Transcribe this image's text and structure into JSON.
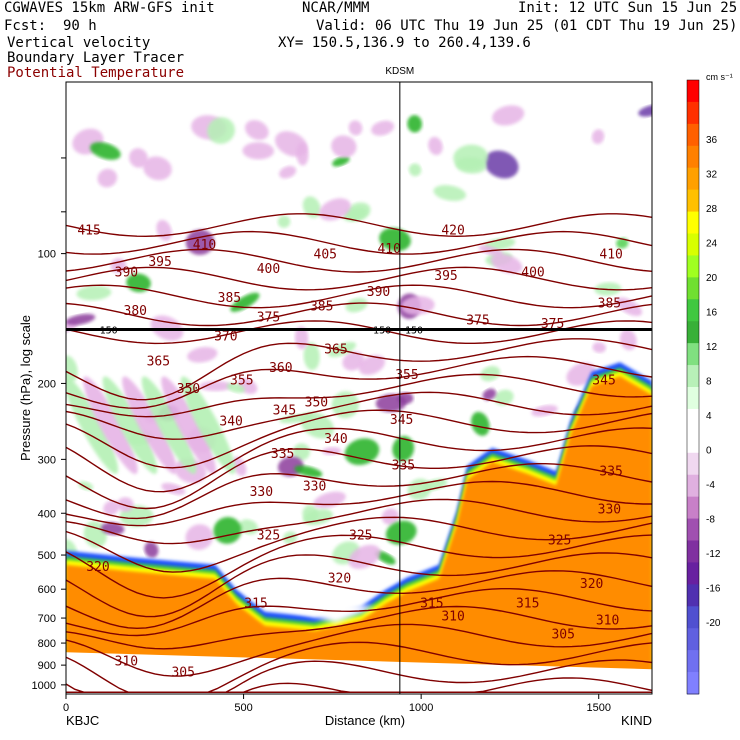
{
  "header": {
    "model": "CGWAVES 15km ARW-GFS init",
    "org": "NCAR/MMM",
    "init": "Init: 12 UTC Sun 15 Jun 25",
    "fcst_label": "Fcst:",
    "fcst_value": "90 h",
    "valid": "Valid: 06 UTC Thu 19 Jun 25 (01 CDT Thu 19 Jun 25)",
    "field1": "Vertical velocity",
    "field2": "Boundary Layer Tracer",
    "field3": "Potential Temperature",
    "xy": "XY= 150.5,136.9 to 260.4,139.6",
    "station_mid": "KDSM",
    "station_left": "KBJC",
    "station_right": "KIND"
  },
  "colors": {
    "theta": "#800000",
    "tracer_orange": "#ff8c00",
    "tracer_yellow": "#ffff00",
    "tracer_green": "#3cc83c",
    "tracer_blue": "#1e50ff",
    "updraft_light": "#b4f0b4",
    "updraft_dark": "#20b020",
    "downdraft_light": "#e6b4e6",
    "downdraft_dark": "#8c3c9c"
  },
  "chart_data": {
    "type": "heatmap",
    "title": "Vertical velocity",
    "xlabel": "Distance (km)",
    "ylabel": "Pressure (hPa), log scale",
    "xlim": [
      0,
      1650
    ],
    "ylim": [
      1050,
      40
    ],
    "y_scale": "log",
    "x_ticks": [
      0,
      500,
      1000,
      1500
    ],
    "y_ticks": [
      1000,
      900,
      800,
      700,
      600,
      500,
      400,
      300,
      200,
      100
    ],
    "marker": {
      "label": "KDSM",
      "x": 940
    },
    "tropopause_line": {
      "pressure": 150,
      "labels": [
        "150",
        "150",
        "150"
      ]
    },
    "colorbar": {
      "unit": "cm s⁻¹",
      "ticks": [
        "36",
        "32",
        "28",
        "24",
        "20",
        "16",
        "12",
        "8",
        "4",
        "0",
        "-4",
        "-8",
        "-12",
        "-16",
        "-20"
      ],
      "colors": [
        "#ff0000",
        "#ff3000",
        "#ff6000",
        "#ff8000",
        "#ffa000",
        "#ffc000",
        "#ffff00",
        "#d8ff00",
        "#a0ff20",
        "#70e030",
        "#40c840",
        "#38b038",
        "#80e080",
        "#b8f0b8",
        "#e0ffe0",
        "#ffffff",
        "#ffffff",
        "#f0d8f0",
        "#e0b0e0",
        "#c880c8",
        "#a050b0",
        "#8030a0",
        "#6820a0",
        "#5030b0",
        "#5050d0",
        "#6060e0",
        "#7070f0",
        "#8080ff"
      ]
    },
    "theta_labels": [
      {
        "v": "415",
        "x": 65,
        "p": 88
      },
      {
        "v": "390",
        "x": 170,
        "p": 110
      },
      {
        "v": "395",
        "x": 265,
        "p": 104
      },
      {
        "v": "410",
        "x": 390,
        "p": 95
      },
      {
        "v": "400",
        "x": 570,
        "p": 108
      },
      {
        "v": "405",
        "x": 730,
        "p": 100
      },
      {
        "v": "410",
        "x": 910,
        "p": 97
      },
      {
        "v": "420",
        "x": 1090,
        "p": 88
      },
      {
        "v": "395",
        "x": 1070,
        "p": 112
      },
      {
        "v": "400",
        "x": 1315,
        "p": 110
      },
      {
        "v": "410",
        "x": 1535,
        "p": 100
      },
      {
        "v": "380",
        "x": 195,
        "p": 135
      },
      {
        "v": "385",
        "x": 460,
        "p": 126
      },
      {
        "v": "385",
        "x": 720,
        "p": 132
      },
      {
        "v": "390",
        "x": 880,
        "p": 122
      },
      {
        "v": "385",
        "x": 1530,
        "p": 130
      },
      {
        "v": "370",
        "x": 450,
        "p": 155
      },
      {
        "v": "375",
        "x": 570,
        "p": 140
      },
      {
        "v": "365",
        "x": 760,
        "p": 166
      },
      {
        "v": "375",
        "x": 1160,
        "p": 142
      },
      {
        "v": "375",
        "x": 1370,
        "p": 145
      },
      {
        "v": "365",
        "x": 260,
        "p": 177
      },
      {
        "v": "360",
        "x": 605,
        "p": 183
      },
      {
        "v": "355",
        "x": 495,
        "p": 196
      },
      {
        "v": "355",
        "x": 960,
        "p": 190
      },
      {
        "v": "350",
        "x": 345,
        "p": 205
      },
      {
        "v": "345",
        "x": 615,
        "p": 230
      },
      {
        "v": "350",
        "x": 705,
        "p": 220
      },
      {
        "v": "340",
        "x": 465,
        "p": 244
      },
      {
        "v": "345",
        "x": 945,
        "p": 242
      },
      {
        "v": "345",
        "x": 1515,
        "p": 196
      },
      {
        "v": "340",
        "x": 760,
        "p": 268
      },
      {
        "v": "335",
        "x": 610,
        "p": 290
      },
      {
        "v": "335",
        "x": 950,
        "p": 308
      },
      {
        "v": "330",
        "x": 700,
        "p": 345
      },
      {
        "v": "330",
        "x": 550,
        "p": 355
      },
      {
        "v": "335",
        "x": 1535,
        "p": 318
      },
      {
        "v": "330",
        "x": 1530,
        "p": 390
      },
      {
        "v": "325",
        "x": 570,
        "p": 448
      },
      {
        "v": "325",
        "x": 830,
        "p": 448
      },
      {
        "v": "325",
        "x": 1390,
        "p": 460
      },
      {
        "v": "320",
        "x": 90,
        "p": 530
      },
      {
        "v": "320",
        "x": 770,
        "p": 563
      },
      {
        "v": "320",
        "x": 1480,
        "p": 580
      },
      {
        "v": "315",
        "x": 535,
        "p": 645
      },
      {
        "v": "315",
        "x": 1030,
        "p": 645
      },
      {
        "v": "315",
        "x": 1300,
        "p": 645
      },
      {
        "v": "310",
        "x": 1090,
        "p": 690
      },
      {
        "v": "310",
        "x": 1525,
        "p": 705
      },
      {
        "v": "305",
        "x": 1400,
        "p": 760
      },
      {
        "v": "310",
        "x": 170,
        "p": 878
      },
      {
        "v": "305",
        "x": 330,
        "p": 930
      }
    ]
  }
}
